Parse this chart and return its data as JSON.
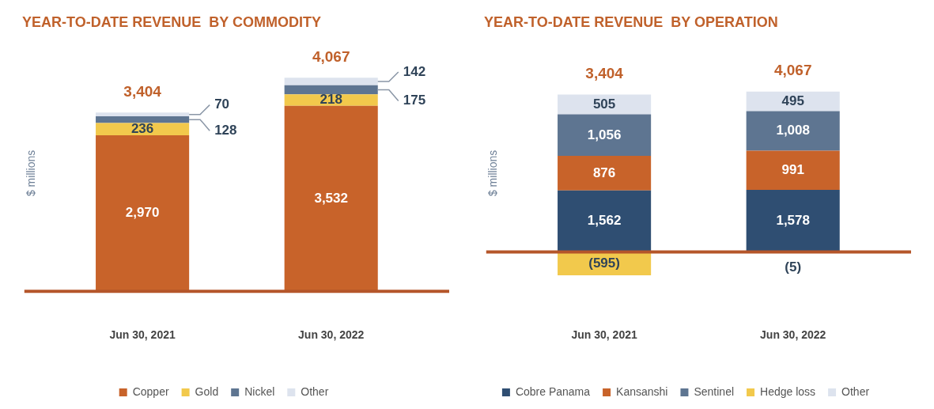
{
  "chart_data": [
    {
      "type": "bar",
      "title": "YEAR-TO-DATE REVENUE  BY COMMODITY",
      "ylabel": "$ millions",
      "categories": [
        "Jun 30, 2021",
        "Jun 30, 2022"
      ],
      "stacked": true,
      "tick_labels": "x",
      "legend": "bottom",
      "grid": false,
      "series": [
        {
          "name": "Copper",
          "color": "#c8632a",
          "values": [
            2970,
            3532
          ],
          "value_labels": [
            "2,970",
            "3,532"
          ]
        },
        {
          "name": "Gold",
          "color": "#f2c94c",
          "values": [
            236,
            218
          ],
          "value_labels": [
            "236",
            "218"
          ]
        },
        {
          "name": "Nickel",
          "color": "#5e7591",
          "values": [
            128,
            175
          ],
          "value_labels": [
            "128",
            "175"
          ]
        },
        {
          "name": "Other",
          "color": "#dde3ee",
          "values": [
            70,
            142
          ],
          "value_labels": [
            "70",
            "142"
          ]
        }
      ],
      "totals": [
        "3,404",
        "4,067"
      ],
      "ref_lines": [
        {
          "axis": "y",
          "value": 0,
          "color": "#b5562a"
        }
      ]
    },
    {
      "type": "bar",
      "title": "YEAR-TO-DATE REVENUE  BY OPERATION",
      "ylabel": "$ millions",
      "categories": [
        "Jun 30, 2021",
        "Jun 30, 2022"
      ],
      "stacked": true,
      "tick_labels": "x",
      "legend": "bottom",
      "grid": false,
      "series": [
        {
          "name": "Cobre Panama",
          "color": "#2f4e72",
          "values": [
            1562,
            1578
          ],
          "value_labels": [
            "1,562",
            "1,578"
          ]
        },
        {
          "name": "Kansanshi",
          "color": "#c8632a",
          "values": [
            876,
            991
          ],
          "value_labels": [
            "876",
            "991"
          ]
        },
        {
          "name": "Sentinel",
          "color": "#5e7591",
          "values": [
            1056,
            1008
          ],
          "value_labels": [
            "1,056",
            "1,008"
          ]
        },
        {
          "name": "Hedge loss",
          "color": "#f2c94c",
          "values": [
            -595,
            -5
          ],
          "value_labels": [
            "(595)",
            "(5)"
          ]
        },
        {
          "name": "Other",
          "color": "#dde3ee",
          "values": [
            505,
            495
          ],
          "value_labels": [
            "505",
            "495"
          ]
        }
      ],
      "totals": [
        "3,404",
        "4,067"
      ],
      "ref_lines": [
        {
          "axis": "y",
          "value": 0,
          "color": "#b5562a"
        }
      ]
    }
  ]
}
